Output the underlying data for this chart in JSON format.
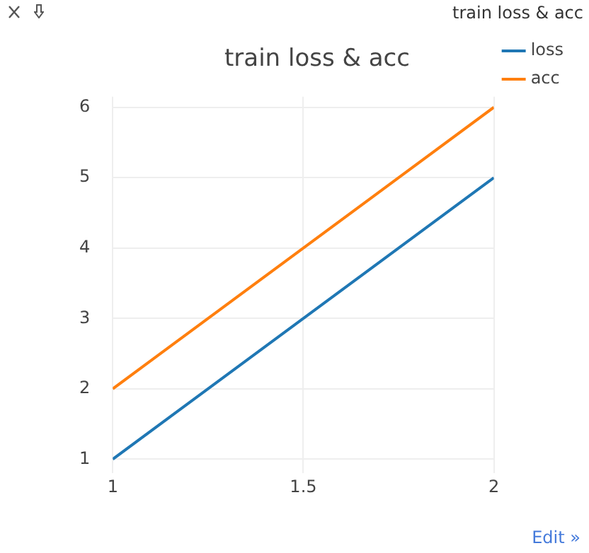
{
  "chart_data": {
    "type": "line",
    "title": "train loss & acc",
    "x": [
      1,
      2
    ],
    "series": [
      {
        "name": "loss",
        "color": "#1f77b4",
        "values": [
          1,
          5
        ]
      },
      {
        "name": "acc",
        "color": "#ff7f0e",
        "values": [
          2,
          6
        ]
      }
    ],
    "xlim": [
      1,
      2
    ],
    "xticks": [
      1,
      1.5,
      2
    ],
    "ylim": [
      0.8,
      6.15
    ],
    "yticks": [
      1,
      2,
      3,
      4,
      5,
      6
    ],
    "grid": true,
    "legend": "top right",
    "marker": "none",
    "line_style": "solid",
    "annotations": [
      "train loss & acc",
      "Edit »"
    ]
  }
}
